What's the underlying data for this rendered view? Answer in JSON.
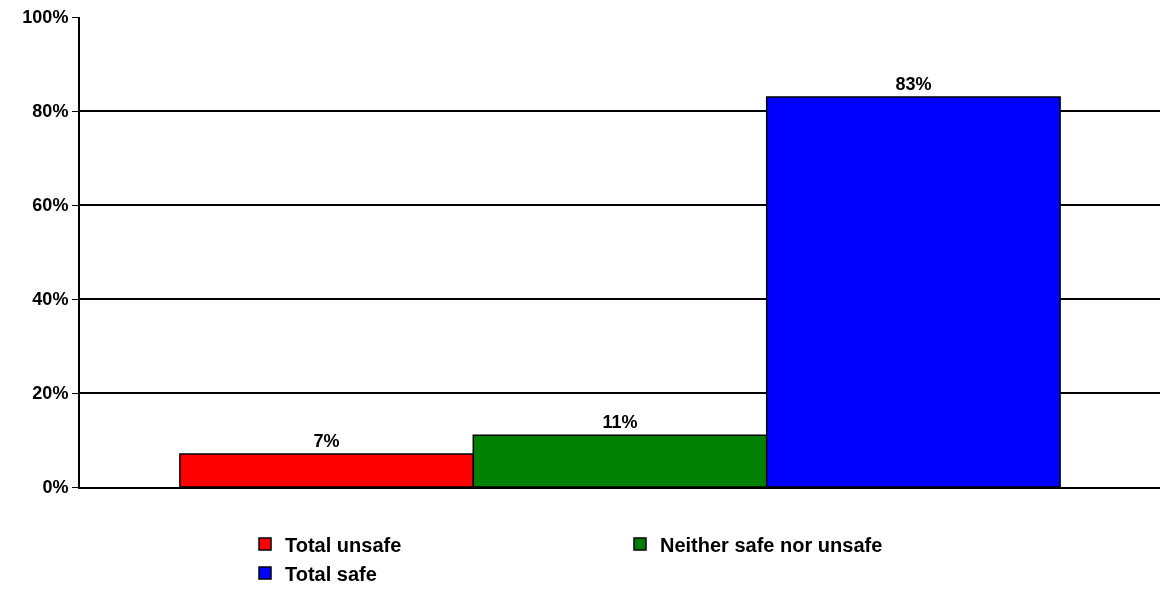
{
  "chart_data": {
    "type": "bar",
    "categories": [
      null
    ],
    "series": [
      {
        "name": "Total unsafe",
        "color": "#ff0000",
        "values": [
          7
        ],
        "value_labels": [
          "7%"
        ]
      },
      {
        "name": "Neither safe nor unsafe",
        "color": "#008000",
        "values": [
          11
        ],
        "value_labels": [
          "11%"
        ]
      },
      {
        "name": "Total safe",
        "color": "#0000ff",
        "values": [
          83
        ],
        "value_labels": [
          "83%"
        ]
      }
    ],
    "ylim": [
      0,
      100
    ],
    "yticks": [
      {
        "value": 0,
        "label": "0%"
      },
      {
        "value": 20,
        "label": "20%"
      },
      {
        "value": 40,
        "label": "40%"
      },
      {
        "value": 60,
        "label": "60%"
      },
      {
        "value": 80,
        "label": "80%"
      },
      {
        "value": 100,
        "label": "100%"
      }
    ],
    "grid": "y",
    "legend": "bottom"
  }
}
